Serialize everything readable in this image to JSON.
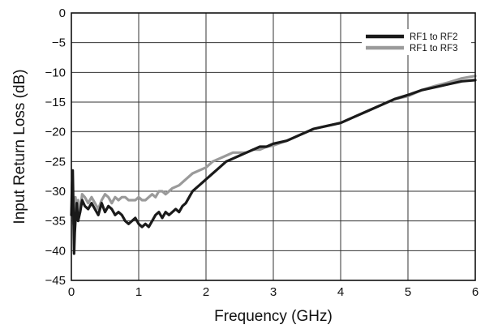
{
  "chart_data": {
    "type": "line",
    "title": "",
    "xlabel": "Frequency (GHz)",
    "ylabel": "Input Return Loss (dB)",
    "xlim": [
      0,
      6
    ],
    "ylim": [
      -45,
      0
    ],
    "xticks": [
      0,
      1,
      2,
      3,
      4,
      5,
      6
    ],
    "xtick_labels": [
      "0",
      "1",
      "2",
      "3",
      "4",
      "5",
      "6"
    ],
    "yticks": [
      0,
      -5,
      -10,
      -15,
      -20,
      -25,
      -30,
      -35,
      -40,
      -45
    ],
    "ytick_labels": [
      "0",
      "−5",
      "−10",
      "−15",
      "−20",
      "−25",
      "−30",
      "−35",
      "−40",
      "−45"
    ],
    "grid": true,
    "legend_position": "top-right",
    "series": [
      {
        "name": "RF1 to RF2",
        "color": "#1a1a1a",
        "x": [
          0.0,
          0.01,
          0.02,
          0.03,
          0.04,
          0.05,
          0.06,
          0.08,
          0.1,
          0.13,
          0.16,
          0.2,
          0.25,
          0.3,
          0.35,
          0.4,
          0.45,
          0.5,
          0.55,
          0.6,
          0.65,
          0.7,
          0.75,
          0.8,
          0.85,
          0.9,
          0.95,
          1.0,
          1.05,
          1.1,
          1.15,
          1.2,
          1.25,
          1.3,
          1.35,
          1.4,
          1.45,
          1.5,
          1.55,
          1.6,
          1.65,
          1.7,
          1.75,
          1.8,
          1.85,
          1.9,
          2.0,
          2.1,
          2.2,
          2.3,
          2.4,
          2.5,
          2.6,
          2.7,
          2.8,
          2.9,
          3.0,
          3.2,
          3.4,
          3.6,
          3.8,
          4.0,
          4.2,
          4.4,
          4.6,
          4.8,
          5.0,
          5.2,
          5.4,
          5.6,
          5.8,
          6.0
        ],
        "values": [
          -34,
          -29,
          -26.5,
          -33,
          -40.5,
          -37,
          -35,
          -32,
          -35,
          -33.5,
          -31.5,
          -32.5,
          -33,
          -32,
          -33,
          -34,
          -32,
          -33.5,
          -32.5,
          -33,
          -34,
          -33.5,
          -34,
          -35,
          -35.5,
          -35,
          -34.5,
          -35.5,
          -36,
          -35.5,
          -36,
          -35,
          -34,
          -33.5,
          -34.5,
          -33.5,
          -34,
          -33.5,
          -33,
          -33.5,
          -32.5,
          -32,
          -31,
          -30,
          -29.5,
          -29,
          -28,
          -27,
          -26,
          -25,
          -24.5,
          -24,
          -23.5,
          -23,
          -22.5,
          -22.5,
          -22,
          -21.5,
          -20.5,
          -19.5,
          -19,
          -18.5,
          -17.5,
          -16.5,
          -15.5,
          -14.5,
          -13.8,
          -13,
          -12.5,
          -12,
          -11.5,
          -11.3
        ]
      },
      {
        "name": "RF1 to RF3",
        "color": "#9a9a9a",
        "x": [
          0.0,
          0.01,
          0.02,
          0.03,
          0.04,
          0.05,
          0.06,
          0.08,
          0.1,
          0.13,
          0.16,
          0.2,
          0.25,
          0.3,
          0.35,
          0.4,
          0.45,
          0.5,
          0.55,
          0.6,
          0.65,
          0.7,
          0.75,
          0.8,
          0.85,
          0.9,
          0.95,
          1.0,
          1.05,
          1.1,
          1.15,
          1.2,
          1.25,
          1.3,
          1.35,
          1.4,
          1.45,
          1.5,
          1.6,
          1.7,
          1.8,
          1.9,
          2.0,
          2.1,
          2.2,
          2.3,
          2.4,
          2.5,
          2.6,
          2.7,
          2.8,
          2.9,
          3.0,
          3.2,
          3.4,
          3.6,
          3.8,
          4.0,
          4.2,
          4.4,
          4.6,
          4.8,
          5.0,
          5.2,
          5.4,
          5.6,
          5.8,
          6.0
        ],
        "values": [
          -34,
          -32,
          -30,
          -35.5,
          -33,
          -32,
          -31,
          -33,
          -31.5,
          -33.5,
          -30.5,
          -31,
          -32,
          -31,
          -32,
          -33,
          -31.5,
          -30.5,
          -31,
          -32,
          -31,
          -31.5,
          -31,
          -31,
          -31.5,
          -31.5,
          -31.5,
          -31,
          -31.5,
          -31.5,
          -31,
          -30.5,
          -31,
          -30,
          -30,
          -30.5,
          -30,
          -29.5,
          -29,
          -28,
          -27,
          -26.5,
          -26,
          -25,
          -24.5,
          -24,
          -23.5,
          -23.5,
          -23.5,
          -23,
          -23,
          -22.5,
          -22.3,
          -21.5,
          -20.5,
          -19.5,
          -19,
          -18.5,
          -17.5,
          -16.5,
          -15.5,
          -14.5,
          -14,
          -13,
          -12.3,
          -11.7,
          -11,
          -10.6
        ]
      }
    ]
  }
}
